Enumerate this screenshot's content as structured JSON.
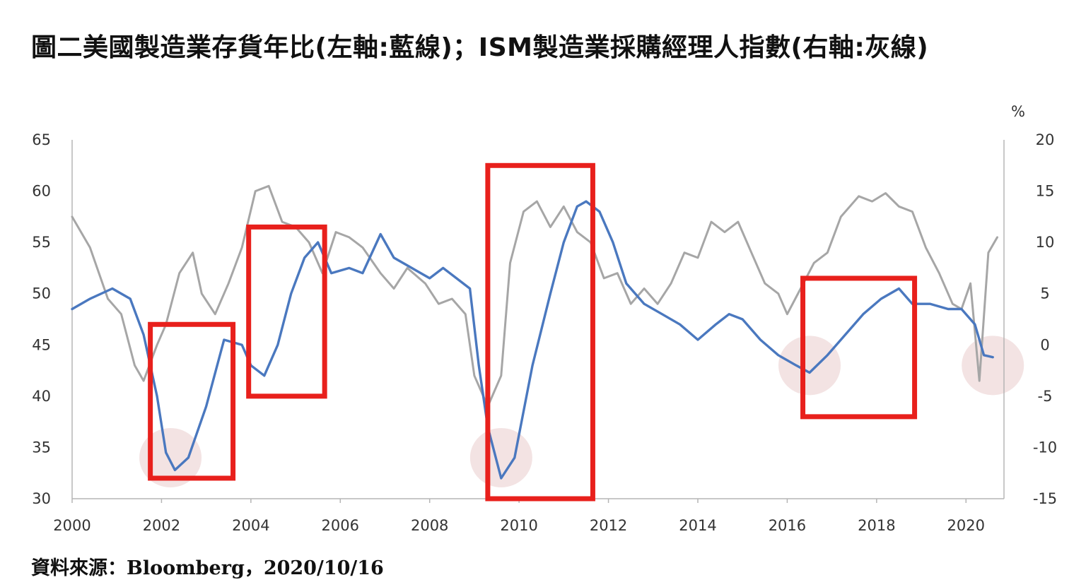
{
  "title": "圖二美國製造業存貨年比(左軸:藍線)；ISM製造業採購經理人指數(右軸:灰線)",
  "source": "資料來源：Bloomberg，2020/10/16",
  "chart_data": {
    "type": "line",
    "title": "圖二美國製造業存貨年比(左軸:藍線)；ISM製造業採購經理人指數(右軸:灰線)",
    "xlabel": "",
    "ylabel_left": "",
    "ylabel_right": "%",
    "xlim": [
      2000,
      2020.85
    ],
    "x_ticks": [
      "2000",
      "2002",
      "2004",
      "2006",
      "2008",
      "2010",
      "2012",
      "2014",
      "2016",
      "2018",
      "2020"
    ],
    "ylim_left": [
      30,
      65
    ],
    "y_ticks_left": [
      "30",
      "35",
      "40",
      "45",
      "50",
      "55",
      "60",
      "65"
    ],
    "ylim_right": [
      -15,
      20
    ],
    "y_ticks_right": [
      "-15",
      "-10",
      "-5",
      "0",
      "5",
      "10",
      "15",
      "20"
    ],
    "grid": false,
    "colors": {
      "blue": "#4a78bf",
      "gray": "#a6a6a6",
      "box": "#e8201c",
      "circle": "#f1dede"
    },
    "series": [
      {
        "color": "#4a78bf",
        "axis": "left",
        "points": [
          [
            2000.0,
            48.5
          ],
          [
            2000.4,
            49.5
          ],
          [
            2000.9,
            50.5
          ],
          [
            2001.3,
            49.5
          ],
          [
            2001.6,
            46.0
          ],
          [
            2001.9,
            40.0
          ],
          [
            2002.1,
            34.5
          ],
          [
            2002.3,
            32.8
          ],
          [
            2002.6,
            34.0
          ],
          [
            2003.0,
            39.0
          ],
          [
            2003.4,
            45.5
          ],
          [
            2003.8,
            45.0
          ],
          [
            2004.0,
            43.0
          ],
          [
            2004.3,
            42.0
          ],
          [
            2004.6,
            45.0
          ],
          [
            2004.9,
            50.0
          ],
          [
            2005.2,
            53.5
          ],
          [
            2005.5,
            55.0
          ],
          [
            2005.8,
            52.0
          ],
          [
            2006.2,
            52.5
          ],
          [
            2006.5,
            52.0
          ],
          [
            2006.9,
            55.8
          ],
          [
            2007.2,
            53.5
          ],
          [
            2007.6,
            52.5
          ],
          [
            2008.0,
            51.5
          ],
          [
            2008.3,
            52.5
          ],
          [
            2008.6,
            51.5
          ],
          [
            2008.9,
            50.5
          ],
          [
            2009.1,
            43.0
          ],
          [
            2009.3,
            37.0
          ],
          [
            2009.6,
            32.0
          ],
          [
            2009.9,
            34.0
          ],
          [
            2010.3,
            43.0
          ],
          [
            2010.7,
            50.0
          ],
          [
            2011.0,
            55.0
          ],
          [
            2011.3,
            58.5
          ],
          [
            2011.5,
            59.0
          ],
          [
            2011.8,
            58.0
          ],
          [
            2012.1,
            55.0
          ],
          [
            2012.4,
            51.0
          ],
          [
            2012.8,
            49.0
          ],
          [
            2013.2,
            48.0
          ],
          [
            2013.6,
            47.0
          ],
          [
            2014.0,
            45.5
          ],
          [
            2014.4,
            47.0
          ],
          [
            2014.7,
            48.0
          ],
          [
            2015.0,
            47.5
          ],
          [
            2015.4,
            45.5
          ],
          [
            2015.8,
            44.0
          ],
          [
            2016.2,
            43.0
          ],
          [
            2016.5,
            42.3
          ],
          [
            2016.9,
            44.0
          ],
          [
            2017.3,
            46.0
          ],
          [
            2017.7,
            48.0
          ],
          [
            2018.1,
            49.5
          ],
          [
            2018.5,
            50.5
          ],
          [
            2018.8,
            49.0
          ],
          [
            2019.2,
            49.0
          ],
          [
            2019.6,
            48.5
          ],
          [
            2019.9,
            48.5
          ],
          [
            2020.2,
            47.0
          ],
          [
            2020.4,
            44.0
          ],
          [
            2020.6,
            43.8
          ]
        ]
      },
      {
        "color": "#a6a6a6",
        "axis": "right",
        "points": [
          [
            2000.0,
            12.5
          ],
          [
            2000.4,
            9.5
          ],
          [
            2000.8,
            4.5
          ],
          [
            2001.1,
            3.0
          ],
          [
            2001.4,
            -2.0
          ],
          [
            2001.6,
            -3.5
          ],
          [
            2001.9,
            0.0
          ],
          [
            2002.1,
            2.0
          ],
          [
            2002.4,
            7.0
          ],
          [
            2002.7,
            9.0
          ],
          [
            2002.9,
            5.0
          ],
          [
            2003.2,
            3.0
          ],
          [
            2003.5,
            6.0
          ],
          [
            2003.8,
            9.5
          ],
          [
            2004.1,
            15.0
          ],
          [
            2004.4,
            15.5
          ],
          [
            2004.7,
            12.0
          ],
          [
            2005.0,
            11.5
          ],
          [
            2005.3,
            10.0
          ],
          [
            2005.6,
            7.0
          ],
          [
            2005.9,
            11.0
          ],
          [
            2006.2,
            10.5
          ],
          [
            2006.5,
            9.5
          ],
          [
            2006.9,
            7.0
          ],
          [
            2007.2,
            5.5
          ],
          [
            2007.5,
            7.5
          ],
          [
            2007.9,
            6.0
          ],
          [
            2008.2,
            4.0
          ],
          [
            2008.5,
            4.5
          ],
          [
            2008.8,
            3.0
          ],
          [
            2009.0,
            -3.0
          ],
          [
            2009.3,
            -6.0
          ],
          [
            2009.6,
            -3.0
          ],
          [
            2009.8,
            8.0
          ],
          [
            2010.1,
            13.0
          ],
          [
            2010.4,
            14.0
          ],
          [
            2010.7,
            11.5
          ],
          [
            2011.0,
            13.5
          ],
          [
            2011.3,
            11.0
          ],
          [
            2011.6,
            10.0
          ],
          [
            2011.9,
            6.5
          ],
          [
            2012.2,
            7.0
          ],
          [
            2012.5,
            4.0
          ],
          [
            2012.8,
            5.5
          ],
          [
            2013.1,
            4.0
          ],
          [
            2013.4,
            6.0
          ],
          [
            2013.7,
            9.0
          ],
          [
            2014.0,
            8.5
          ],
          [
            2014.3,
            12.0
          ],
          [
            2014.6,
            11.0
          ],
          [
            2014.9,
            12.0
          ],
          [
            2015.2,
            9.0
          ],
          [
            2015.5,
            6.0
          ],
          [
            2015.8,
            5.0
          ],
          [
            2016.0,
            3.0
          ],
          [
            2016.3,
            5.5
          ],
          [
            2016.6,
            8.0
          ],
          [
            2016.9,
            9.0
          ],
          [
            2017.2,
            12.5
          ],
          [
            2017.6,
            14.5
          ],
          [
            2017.9,
            14.0
          ],
          [
            2018.2,
            14.8
          ],
          [
            2018.5,
            13.5
          ],
          [
            2018.8,
            13.0
          ],
          [
            2019.1,
            9.5
          ],
          [
            2019.4,
            7.0
          ],
          [
            2019.7,
            4.0
          ],
          [
            2019.9,
            3.5
          ],
          [
            2020.1,
            6.0
          ],
          [
            2020.3,
            -3.5
          ],
          [
            2020.5,
            9.0
          ],
          [
            2020.7,
            10.5
          ]
        ]
      }
    ],
    "annotations": {
      "boxes": [
        {
          "x0": 2001.75,
          "x1": 2003.6,
          "y0": 32.0,
          "y1": 47.0
        },
        {
          "x0": 2003.95,
          "x1": 2005.65,
          "y0": 40.0,
          "y1": 56.5
        },
        {
          "x0": 2009.3,
          "x1": 2011.65,
          "y0": 30.0,
          "y1": 62.5
        },
        {
          "x0": 2016.35,
          "x1": 2018.85,
          "y0": 38.0,
          "y1": 51.5
        }
      ],
      "circles": [
        {
          "x": 2002.2,
          "y": 34.0
        },
        {
          "x": 2009.6,
          "y": 34.0
        },
        {
          "x": 2016.5,
          "y": 43.0
        },
        {
          "x": 2020.6,
          "y": 43.0
        }
      ]
    }
  }
}
